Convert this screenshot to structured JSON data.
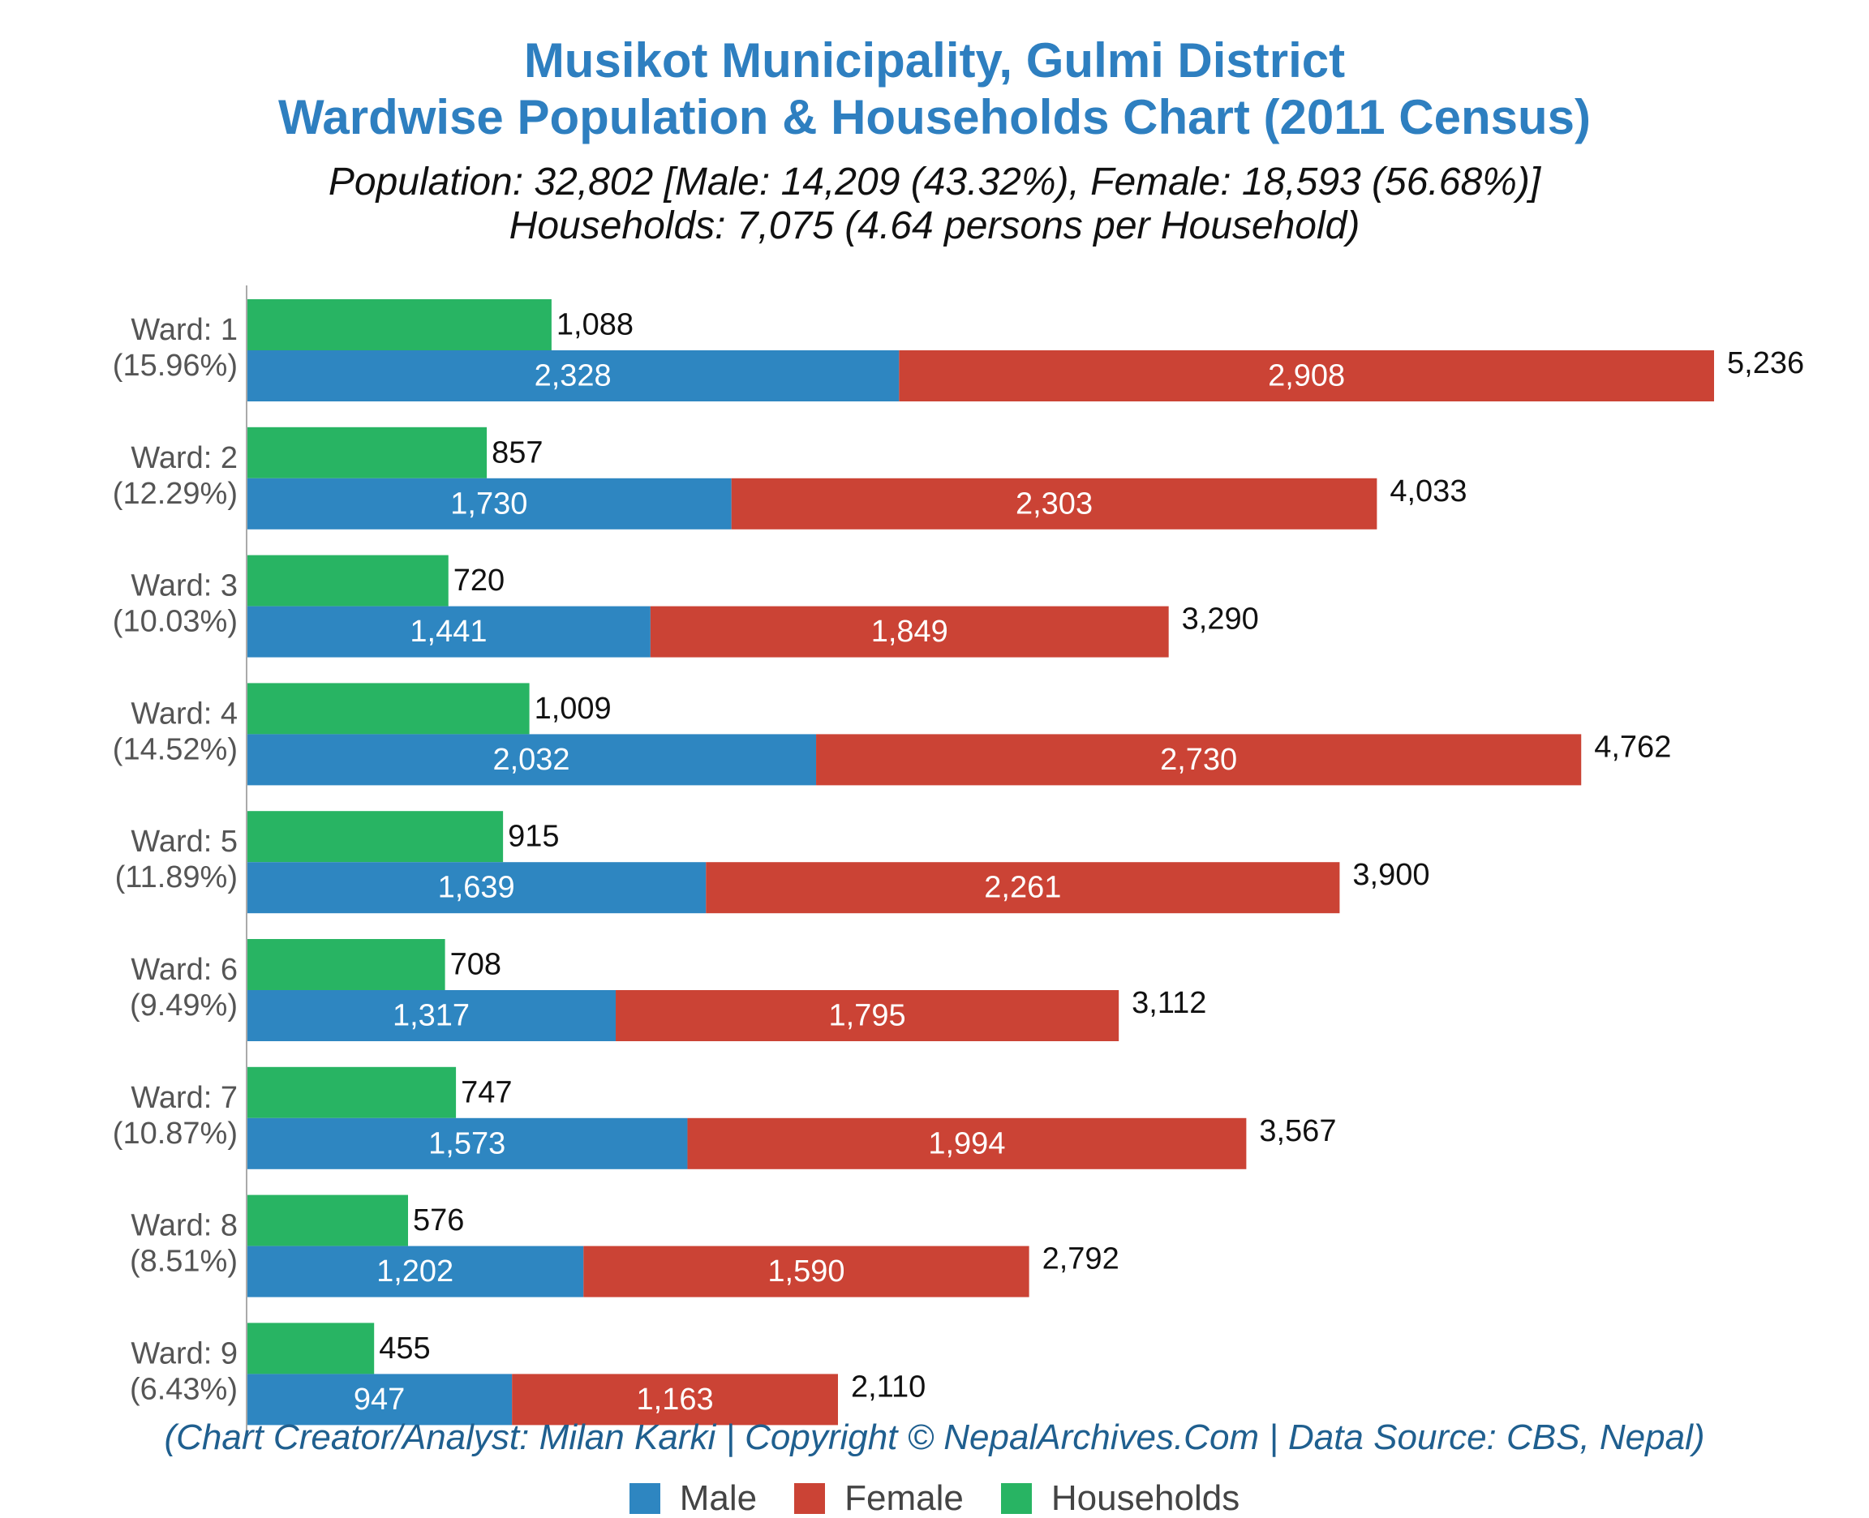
{
  "title_line1": "Musikot Municipality, Gulmi District",
  "title_line2": "Wardwise Population & Households Chart (2011 Census)",
  "subtitle_line1": "Population: 32,802 [Male: 14,209 (43.32%), Female: 18,593 (56.68%)]",
  "subtitle_line2": "Households: 7,075 (4.64 persons per Household)",
  "credit": "(Chart Creator/Analyst: Milan Karki | Copyright © NepalArchives.Com | Data Source: CBS, Nepal)",
  "legend": {
    "male": "Male",
    "female": "Female",
    "households": "Households"
  },
  "colors": {
    "male": "#2e86c1",
    "female": "#cb4335",
    "households": "#28b463"
  },
  "chart_data": {
    "type": "bar",
    "orientation": "horizontal",
    "stacked": [
      "Male",
      "Female"
    ],
    "categories": [
      "Ward: 1 (15.96%)",
      "Ward: 2 (12.29%)",
      "Ward: 3 (10.03%)",
      "Ward: 4 (14.52%)",
      "Ward: 5 (11.89%)",
      "Ward: 6 (9.49%)",
      "Ward: 7 (10.87%)",
      "Ward: 8 (8.51%)",
      "Ward: 9 (6.43%)"
    ],
    "category_lines": [
      [
        "Ward: 1",
        "(15.96%)"
      ],
      [
        "Ward: 2",
        "(12.29%)"
      ],
      [
        "Ward: 3",
        "(10.03%)"
      ],
      [
        "Ward: 4",
        "(14.52%)"
      ],
      [
        "Ward: 5",
        "(11.89%)"
      ],
      [
        "Ward: 6",
        "(9.49%)"
      ],
      [
        "Ward: 7",
        "(10.87%)"
      ],
      [
        "Ward: 8",
        "(8.51%)"
      ],
      [
        "Ward: 9",
        "(6.43%)"
      ]
    ],
    "series": [
      {
        "name": "Male",
        "values": [
          2328,
          1730,
          1441,
          2032,
          1639,
          1317,
          1573,
          1202,
          947
        ]
      },
      {
        "name": "Female",
        "values": [
          2908,
          2303,
          1849,
          2730,
          2261,
          1795,
          1994,
          1590,
          1163
        ]
      },
      {
        "name": "Households",
        "values": [
          1088,
          857,
          720,
          1009,
          915,
          708,
          747,
          576,
          455
        ]
      }
    ],
    "totals": [
      5236,
      4033,
      3290,
      4762,
      3900,
      3112,
      3567,
      2792,
      2110
    ],
    "labels": {
      "male": [
        "2,328",
        "1,730",
        "1,441",
        "2,032",
        "1,639",
        "1,317",
        "1,573",
        "1,202",
        "947"
      ],
      "female": [
        "2,908",
        "2,303",
        "1,849",
        "2,730",
        "2,261",
        "1,795",
        "1,994",
        "1,590",
        "1,163"
      ],
      "households": [
        "1,088",
        "857",
        "720",
        "1,009",
        "915",
        "708",
        "747",
        "576",
        "455"
      ],
      "totals": [
        "5,236",
        "4,033",
        "3,290",
        "4,762",
        "3,900",
        "3,112",
        "3,567",
        "2,792",
        "2,110"
      ]
    },
    "xlim": [
      0,
      5236
    ],
    "grid": false,
    "legend_position": "bottom"
  }
}
